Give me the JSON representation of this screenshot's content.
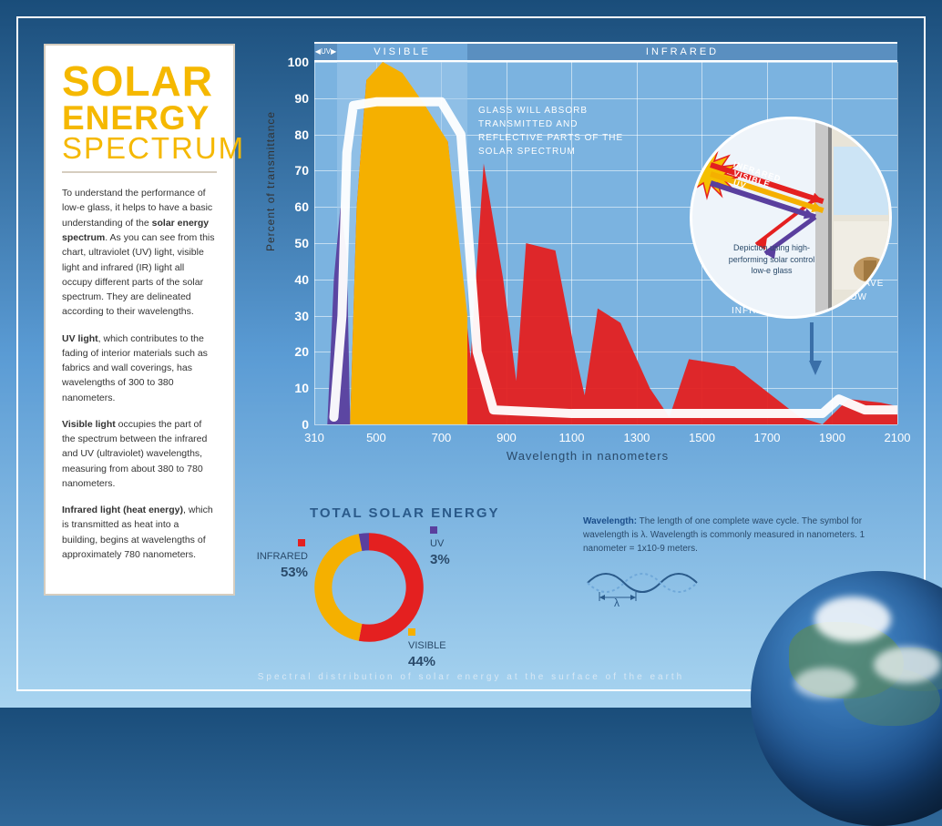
{
  "sidebar": {
    "title_line1": "SOLAR",
    "title_line2": "ENERGY",
    "title_line3": "SPECTRUM",
    "para1_a": "To understand the performance of low-e glass, it helps to have a basic understanding of the ",
    "para1_b": "solar energy spectrum",
    "para1_c": ". As you can see from this chart, ultraviolet (UV) light, visible light and infrared (IR) light all occupy different parts of the solar spectrum. They are delineated according to their wavelengths.",
    "para2_a": "UV light",
    "para2_b": ", which contributes to the fading of interior materials such as fabrics and wall coverings, has wavelengths of 300 to 380 nanometers.",
    "para3_a": "Visible light",
    "para3_b": " occupies the part of the spectrum between the infrared and UV (ultraviolet) wavelengths, measuring from about 380 to 780 nanometers.",
    "para4_a": "Infrared light (heat energy)",
    "para4_b": ", which is transmitted as heat into a building, begins at wavelengths of approximately 780 nanometers."
  },
  "chart": {
    "type": "area",
    "xlim": [
      310,
      2100
    ],
    "ylim": [
      0,
      100
    ],
    "xticks": [
      310,
      500,
      700,
      900,
      1100,
      1300,
      1500,
      1700,
      1900,
      2100
    ],
    "yticks": [
      0,
      10,
      20,
      30,
      40,
      50,
      60,
      70,
      80,
      90,
      100
    ],
    "xlabel": "Wavelength in nanometers",
    "ylabel": "Percent of transmittance",
    "grid_color": "#ffffff",
    "plot_bg": "#7bb3e0",
    "bands": [
      {
        "label": "UV",
        "from": 310,
        "to": 380,
        "bg_header": "#5a8fc0"
      },
      {
        "label": "VISIBLE",
        "from": 380,
        "to": 780,
        "bg_header": "#6fa8d9",
        "shade_plot": true
      },
      {
        "label": "INFRARED",
        "from": 780,
        "to": 2100,
        "bg_header": "#5a8fc0"
      }
    ],
    "series": [
      {
        "name": "uv",
        "color": "#5a3f9e",
        "opacity": 0.95,
        "points": [
          [
            350,
            0
          ],
          [
            370,
            40
          ],
          [
            390,
            60
          ],
          [
            410,
            47
          ],
          [
            420,
            0
          ]
        ]
      },
      {
        "name": "visible_infrared_fill",
        "color": "#e42020",
        "opacity": 0.95,
        "points": [
          [
            420,
            0
          ],
          [
            440,
            60
          ],
          [
            470,
            95
          ],
          [
            520,
            98
          ],
          [
            580,
            93
          ],
          [
            650,
            85
          ],
          [
            720,
            78
          ],
          [
            790,
            18
          ],
          [
            830,
            72
          ],
          [
            890,
            40
          ],
          [
            930,
            12
          ],
          [
            960,
            50
          ],
          [
            1050,
            48
          ],
          [
            1110,
            20
          ],
          [
            1140,
            8
          ],
          [
            1180,
            32
          ],
          [
            1250,
            28
          ],
          [
            1340,
            10
          ],
          [
            1400,
            2
          ],
          [
            1460,
            18
          ],
          [
            1600,
            16
          ],
          [
            1800,
            2
          ],
          [
            1870,
            0
          ],
          [
            1950,
            7
          ],
          [
            2050,
            6
          ],
          [
            2100,
            5
          ],
          [
            2100,
            0
          ]
        ]
      },
      {
        "name": "visible_overlay",
        "color": "#f5b000",
        "opacity": 1.0,
        "points": [
          [
            420,
            0
          ],
          [
            440,
            60
          ],
          [
            470,
            95
          ],
          [
            520,
            100
          ],
          [
            580,
            97
          ],
          [
            650,
            88
          ],
          [
            720,
            78
          ],
          [
            780,
            30
          ],
          [
            780,
            0
          ]
        ]
      },
      {
        "name": "ideal_glass_line",
        "color": "#ffffff",
        "opacity": 0.95,
        "stroke_only": true,
        "width": 10,
        "points": [
          [
            370,
            2
          ],
          [
            395,
            30
          ],
          [
            410,
            75
          ],
          [
            430,
            88
          ],
          [
            500,
            89
          ],
          [
            600,
            89
          ],
          [
            700,
            89
          ],
          [
            760,
            80
          ],
          [
            810,
            20
          ],
          [
            860,
            4
          ],
          [
            1100,
            3
          ],
          [
            1500,
            3
          ],
          [
            1870,
            3
          ],
          [
            1920,
            7
          ],
          [
            2000,
            4
          ],
          [
            2100,
            4
          ]
        ]
      }
    ],
    "annot1": "GLASS WILL ABSORB TRANSMITTED AND REFLECTIVE PARTS OF THE SOLAR SPECTRUM",
    "annot2": "THE IDEAL GLASS WILL HAVE HIGH VISIBILITY AND LOW INFRARED"
  },
  "inset": {
    "caption": "Depiction using high-performing solar control low-e glass",
    "rays": [
      {
        "label": "INFRARED",
        "color": "#e42020"
      },
      {
        "label": "VISIBLE",
        "color": "#f5b000"
      },
      {
        "label": "UV",
        "color": "#5a3f9e"
      }
    ]
  },
  "donut": {
    "title": "TOTAL SOLAR ENERGY",
    "slices": [
      {
        "label": "INFRARED",
        "pct": 53,
        "color": "#e42020"
      },
      {
        "label": "VISIBLE",
        "pct": 44,
        "color": "#f5b000"
      },
      {
        "label": "UV",
        "pct": 3,
        "color": "#5a3f9e"
      }
    ],
    "thickness": 0.32
  },
  "wavelength_def": {
    "lead": "Wavelength:",
    "body": " The length of one complete wave cycle. The symbol for wavelength is λ. Wavelength is commonly measured in nanometers. 1 nanometer = 1x10-9 meters.",
    "lambda": "λ"
  },
  "footer": "Spectral distribution of solar energy at the surface of the earth"
}
